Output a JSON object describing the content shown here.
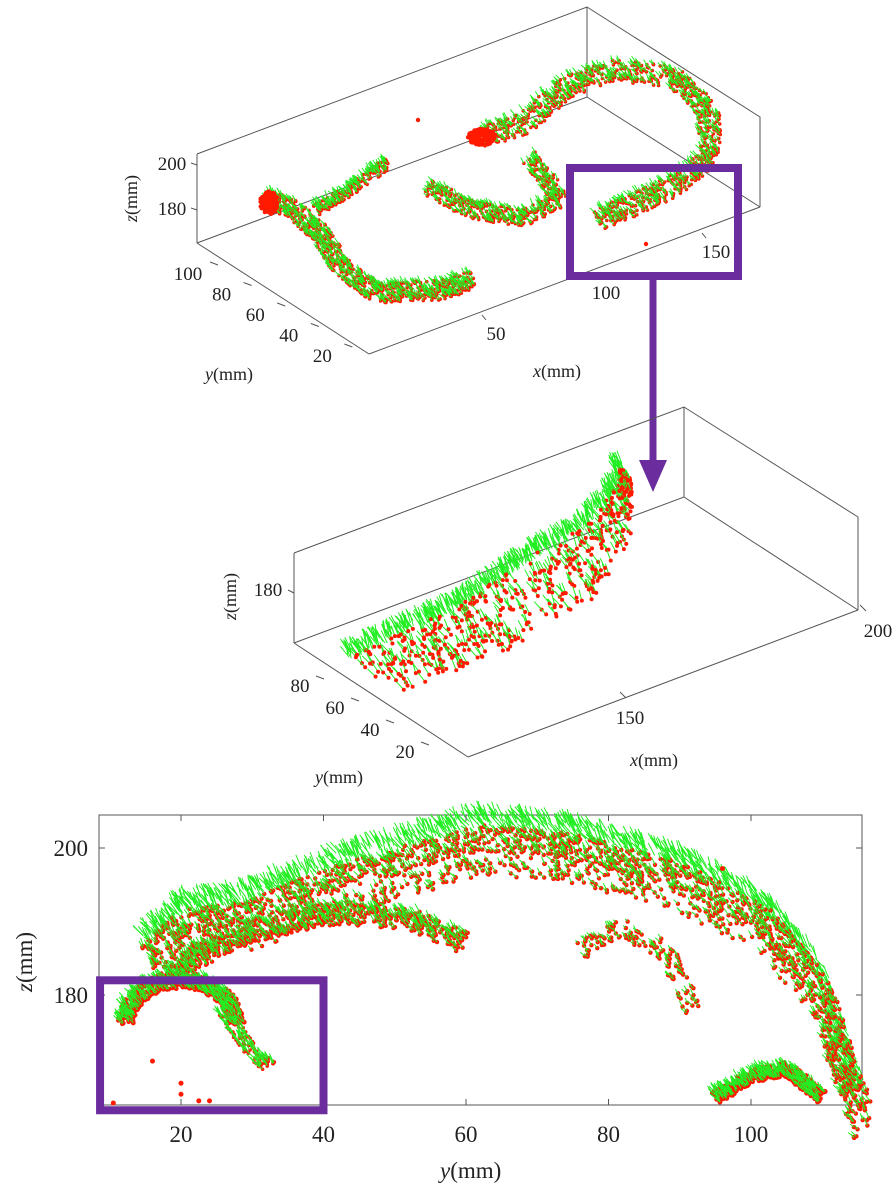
{
  "colors": {
    "points": "#ff1a00",
    "normals": "#22ee22",
    "highlight": "#6b2d9e",
    "axes": "#555555"
  },
  "chart_data": [
    {
      "type": "scatter3d",
      "panel": "top",
      "x_label": {
        "var": "x",
        "unit": "(mm)"
      },
      "y_label": {
        "var": "y",
        "unit": "(mm)"
      },
      "z_label": {
        "var": "z",
        "unit": "(mm)"
      },
      "x_ticks": [
        "50",
        "100",
        "150"
      ],
      "y_ticks": [
        "100",
        "80",
        "60",
        "40",
        "20"
      ],
      "z_ticks": [
        "200",
        "180"
      ],
      "series": [
        {
          "marker": "red dots",
          "color": "#ff1a00"
        },
        {
          "marker": "green normal vectors",
          "color": "#22ee22"
        }
      ],
      "highlight_box": "around region near x = 150 mm"
    },
    {
      "type": "scatter3d",
      "panel": "middle",
      "x_label": {
        "var": "x",
        "unit": "(mm)"
      },
      "y_label": {
        "var": "y",
        "unit": "(mm)"
      },
      "z_label": {
        "var": "z",
        "unit": "(mm)"
      },
      "x_ticks": [
        "150",
        "200"
      ],
      "y_ticks": [
        "80",
        "60",
        "40",
        "20"
      ],
      "z_ticks": [
        "180"
      ]
    },
    {
      "type": "scatter",
      "panel": "bottom",
      "x_label": {
        "var": "y",
        "unit": "(mm)"
      },
      "y_label": {
        "var": "z",
        "unit": "(mm)"
      },
      "x_ticks": [
        20,
        40,
        60,
        80,
        100
      ],
      "y_ticks": [
        180,
        200
      ],
      "xlim": [
        8.5,
        115.5
      ],
      "ylim": [
        165,
        204.5
      ],
      "grid": false,
      "outer_arch_top_edge": [
        [
          15.2,
          187.5
        ],
        [
          20.7,
          192.5
        ],
        [
          28.7,
          193.3
        ],
        [
          42,
          198.4
        ],
        [
          61.8,
          203.8
        ],
        [
          73.8,
          202.9
        ],
        [
          89.6,
          198.8
        ],
        [
          101.4,
          192.9
        ],
        [
          109.4,
          183.8
        ],
        [
          115.3,
          166.9
        ]
      ],
      "inner_fold": [
        [
          18,
          183
        ],
        [
          28,
          188
        ],
        [
          40,
          191
        ],
        [
          52,
          190.5
        ],
        [
          60,
          187
        ]
      ],
      "left_dome": {
        "center": [
          20,
          176
        ],
        "radius": 6
      },
      "highlight_box": {
        "y_range": [
          8.5,
          40
        ],
        "z_range": [
          165,
          182
        ]
      }
    }
  ]
}
